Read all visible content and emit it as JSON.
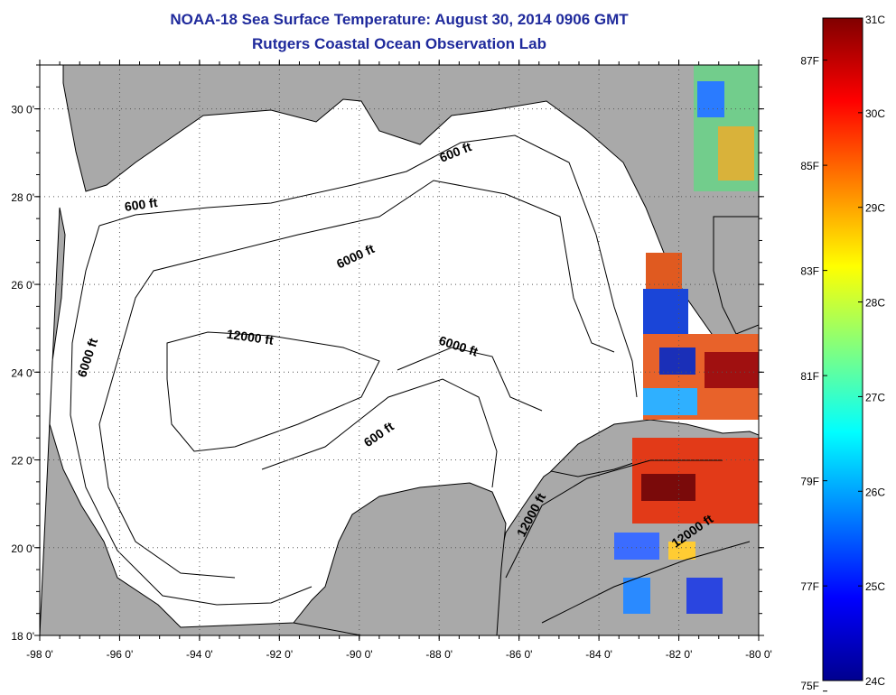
{
  "header": {
    "title_line1": "NOAA-18 Sea Surface Temperature:  August 30, 2014 0906 GMT",
    "title_line2": "Rutgers Coastal Ocean Observation Lab"
  },
  "map": {
    "lon_range": [
      -98,
      -80
    ],
    "lat_range": [
      18,
      31
    ],
    "lon_ticks": [
      {
        "value": -98,
        "label": "-98 0'"
      },
      {
        "value": -96,
        "label": "-96 0'"
      },
      {
        "value": -94,
        "label": "-94 0'"
      },
      {
        "value": -92,
        "label": "-92 0'"
      },
      {
        "value": -90,
        "label": "-90 0'"
      },
      {
        "value": -88,
        "label": "-88 0'"
      },
      {
        "value": -86,
        "label": "-86 0'"
      },
      {
        "value": -84,
        "label": "-84 0'"
      },
      {
        "value": -82,
        "label": "-82 0'"
      },
      {
        "value": -80,
        "label": "-80 0'"
      }
    ],
    "lat_ticks": [
      {
        "value": 18,
        "label": "18 0'"
      },
      {
        "value": 20,
        "label": "20 0'"
      },
      {
        "value": 22,
        "label": "22 0'"
      },
      {
        "value": 24,
        "label": "24 0'"
      },
      {
        "value": 26,
        "label": "26 0'"
      },
      {
        "value": 28,
        "label": "28 0'"
      },
      {
        "value": 30,
        "label": "30 0'"
      }
    ],
    "grid": "dotted",
    "land_color": "#a9a9a9",
    "water_color": "#ffffff",
    "contour_labels": [
      {
        "text": "600 ft",
        "lon": -87.55,
        "lat": 28.92,
        "angle": -22
      },
      {
        "text": "600 ft",
        "lon": -95.45,
        "lat": 27.72,
        "angle": -8
      },
      {
        "text": "6000 ft",
        "lon": -90.05,
        "lat": 26.55,
        "angle": -25
      },
      {
        "text": "12000 ft",
        "lon": -92.75,
        "lat": 24.7,
        "angle": 8
      },
      {
        "text": "6000 ft",
        "lon": -87.55,
        "lat": 24.5,
        "angle": 18
      },
      {
        "text": "6000 ft",
        "lon": -96.7,
        "lat": 24.3,
        "angle": -72
      },
      {
        "text": "600 ft",
        "lon": -89.45,
        "lat": 22.5,
        "angle": -35
      },
      {
        "text": "12000 ft",
        "lon": -85.6,
        "lat": 20.7,
        "angle": -62
      },
      {
        "text": "12000 ft",
        "lon": -81.6,
        "lat": 20.3,
        "angle": -35
      }
    ]
  },
  "colorbar": {
    "celsius": [
      "31C",
      "30C",
      "29C",
      "28C",
      "27C",
      "26C",
      "25C",
      "24C"
    ],
    "celsius_range": [
      24,
      31
    ],
    "fahrenheit": [
      "87F",
      "85F",
      "83F",
      "81F",
      "79F",
      "77F",
      "75F"
    ],
    "fahrenheit_values": [
      87,
      85,
      83,
      81,
      79,
      77,
      75
    ],
    "colors": [
      "#00008f",
      "#0000ff",
      "#0080ff",
      "#00ffff",
      "#80ff80",
      "#ffff00",
      "#ff8000",
      "#ff0000",
      "#800000"
    ]
  }
}
